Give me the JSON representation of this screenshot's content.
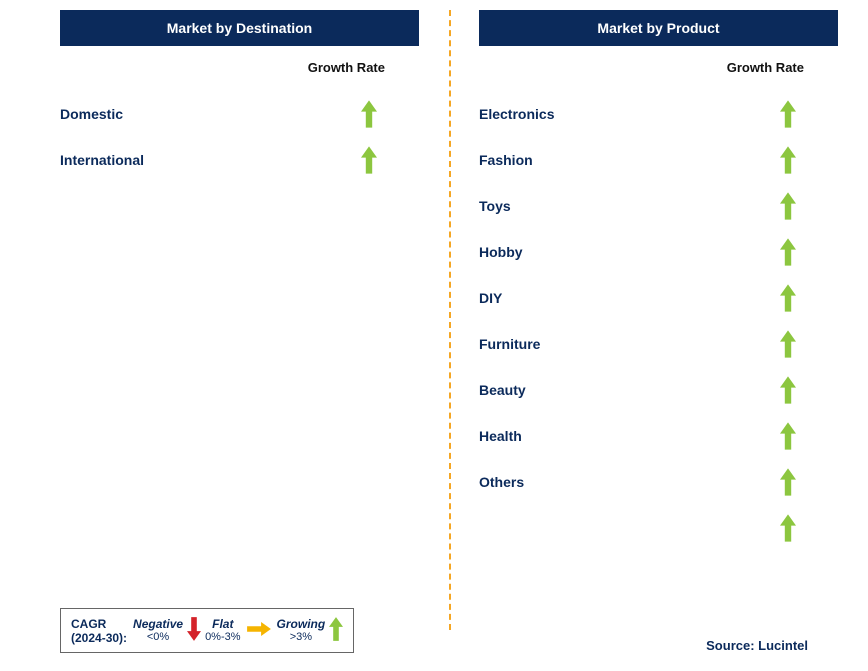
{
  "colors": {
    "header_bg": "#0b2a5b",
    "header_text": "#ffffff",
    "label_text": "#0b2a5b",
    "subhead_text": "#111111",
    "divider": "#f5a623",
    "arrow_up": "#8cc63f",
    "arrow_down": "#d4232a",
    "arrow_right": "#f5b400",
    "source_text": "#0b2a5b",
    "legend_text": "#0b2a5b"
  },
  "left": {
    "title": "Market by Destination",
    "subhead": "Growth Rate",
    "rows": [
      {
        "label": "Domestic",
        "arrow": "up"
      },
      {
        "label": "International",
        "arrow": "up"
      }
    ]
  },
  "right": {
    "title": "Market by Product",
    "subhead": "Growth Rate",
    "rows": [
      {
        "label": "Electronics",
        "arrow": "up"
      },
      {
        "label": "Fashion",
        "arrow": "up"
      },
      {
        "label": "Toys",
        "arrow": "up"
      },
      {
        "label": "Hobby",
        "arrow": "up"
      },
      {
        "label": "DIY",
        "arrow": "up"
      },
      {
        "label": "Furniture",
        "arrow": "up"
      },
      {
        "label": "Beauty",
        "arrow": "up"
      },
      {
        "label": "Health",
        "arrow": "up"
      },
      {
        "label": "Others",
        "arrow": "up"
      },
      {
        "label": "",
        "arrow": "up"
      }
    ]
  },
  "legend": {
    "title_line1": "CAGR",
    "title_line2": "(2024-30):",
    "items": [
      {
        "top": "Negative",
        "bot": "<0%",
        "arrow": "down"
      },
      {
        "top": "Flat",
        "bot": "0%-3%",
        "arrow": "right"
      },
      {
        "top": "Growing",
        "bot": ">3%",
        "arrow": "up"
      }
    ]
  },
  "source": "Source: Lucintel"
}
